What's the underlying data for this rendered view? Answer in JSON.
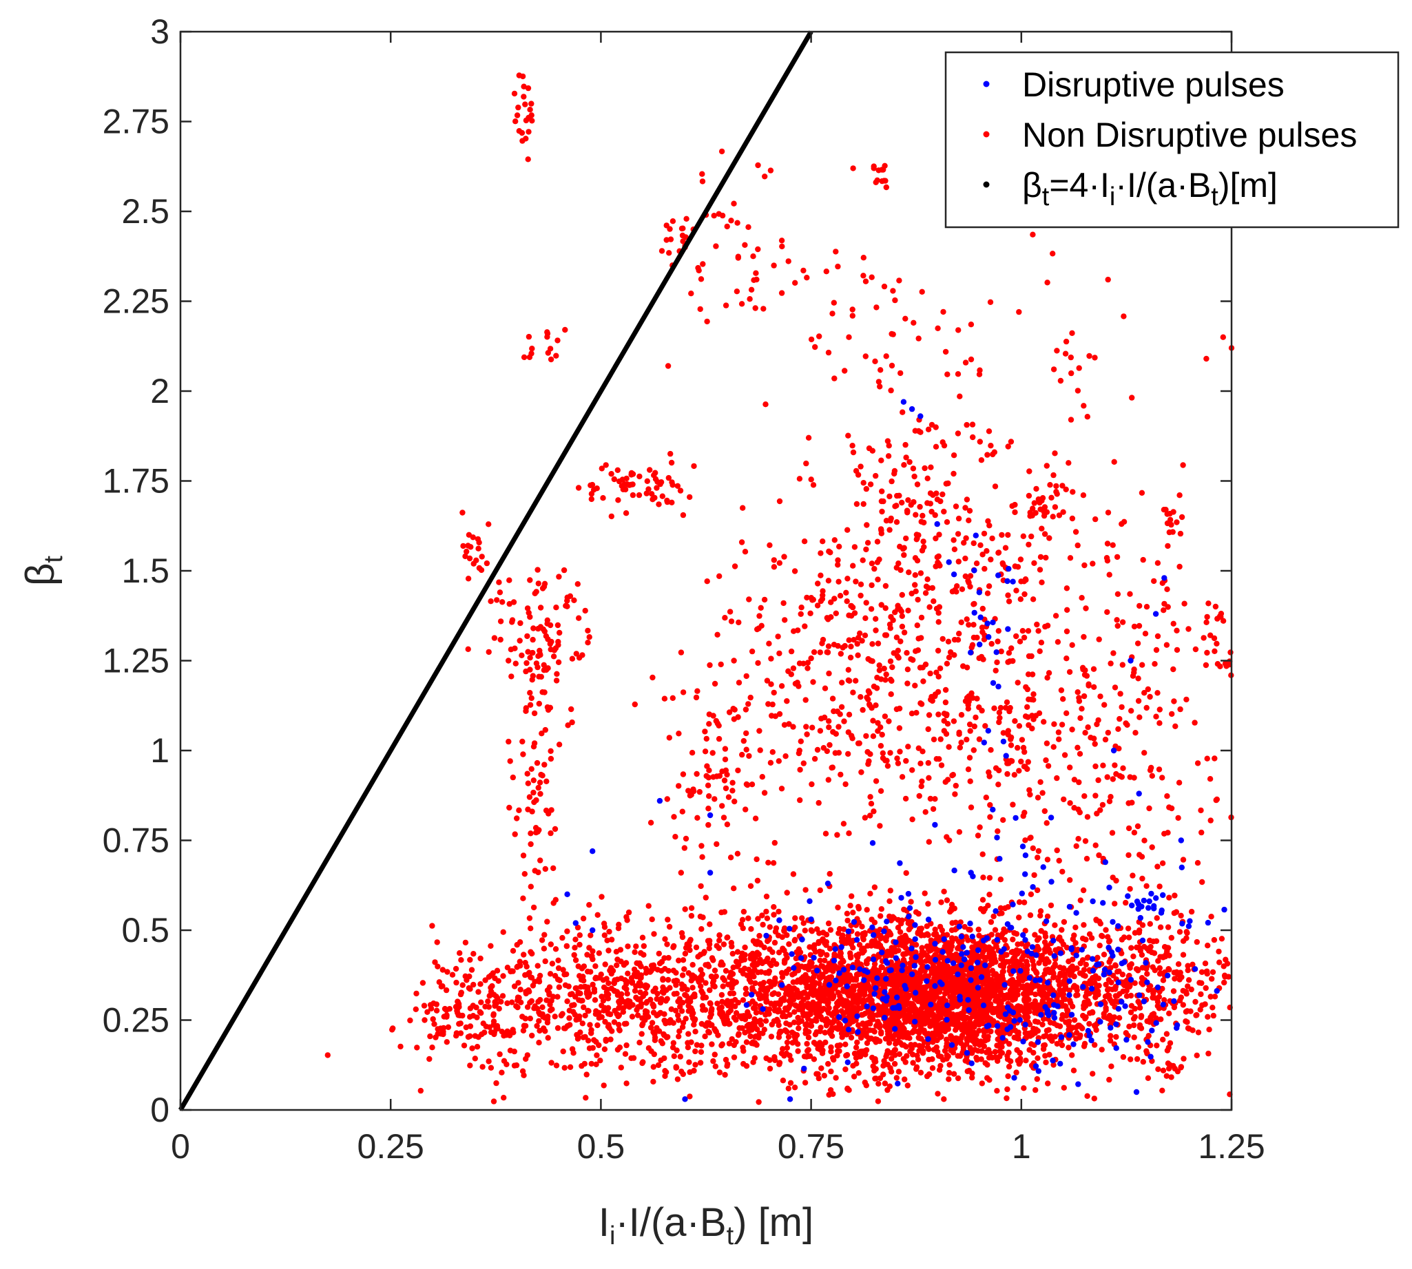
{
  "chart_data": {
    "type": "scatter",
    "title": "",
    "xlabel": {
      "parts": [
        [
          "I",
          ""
        ],
        [
          "i",
          "sub"
        ],
        [
          "·I/(a·B",
          ""
        ],
        [
          "t",
          "sub"
        ],
        [
          ") [m]",
          ""
        ]
      ]
    },
    "ylabel": {
      "parts": [
        [
          "β",
          ""
        ],
        [
          "t",
          "sub"
        ]
      ]
    },
    "xlim": [
      0,
      1.25
    ],
    "ylim": [
      0,
      3
    ],
    "x_ticks": [
      0,
      0.25,
      0.5,
      0.75,
      1,
      1.25
    ],
    "x_tick_labels": [
      "0",
      "0.25",
      "0.5",
      "0.75",
      "1",
      "1.25"
    ],
    "y_ticks": [
      0,
      0.25,
      0.5,
      0.75,
      1,
      1.25,
      1.5,
      1.75,
      2,
      2.25,
      2.5,
      2.75,
      3
    ],
    "y_tick_labels": [
      "0",
      "0.25",
      "0.5",
      "0.75",
      "1",
      "1.25",
      "1.5",
      "1.75",
      "2",
      "2.25",
      "2.5",
      "2.75",
      "3"
    ],
    "grid": false,
    "legend_position": "top-right",
    "series": [
      {
        "name": "Disruptive pulses",
        "color": "#0000ff",
        "kind": "scatter",
        "clusters": [
          {
            "cx": 0.94,
            "cy": 0.34,
            "sx": 0.1,
            "sy": 0.12,
            "n": 160
          },
          {
            "cx": 1.12,
            "cy": 0.42,
            "sx": 0.06,
            "sy": 0.14,
            "n": 70
          },
          {
            "cx": 0.8,
            "cy": 0.42,
            "sx": 0.06,
            "sy": 0.1,
            "n": 40
          },
          {
            "cx": 0.96,
            "cy": 1.3,
            "sx": 0.02,
            "sy": 0.2,
            "n": 22
          },
          {
            "cx": 1.15,
            "cy": 0.58,
            "sx": 0.012,
            "sy": 0.02,
            "n": 15
          },
          {
            "cx": 1.0,
            "cy": 0.72,
            "sx": 0.03,
            "sy": 0.06,
            "n": 10
          }
        ],
        "points": [
          [
            0.87,
            1.95
          ],
          [
            0.88,
            1.93
          ],
          [
            0.86,
            1.97
          ],
          [
            0.6,
            0.03
          ],
          [
            0.725,
            0.03
          ],
          [
            0.57,
            0.86
          ],
          [
            0.63,
            0.82
          ],
          [
            0.49,
            0.72
          ],
          [
            0.46,
            0.6
          ],
          [
            0.47,
            0.52
          ],
          [
            0.49,
            0.5
          ],
          [
            0.63,
            0.66
          ],
          [
            0.77,
            0.63
          ],
          [
            0.99,
            1.47
          ],
          [
            1.17,
            1.48
          ],
          [
            1.16,
            1.38
          ],
          [
            1.13,
            1.25
          ],
          [
            1.11,
            1.0
          ],
          [
            1.14,
            0.88
          ],
          [
            1.19,
            0.75
          ],
          [
            0.9,
            1.63
          ],
          [
            0.92,
            1.49
          ],
          [
            0.95,
            1.44
          ]
        ]
      },
      {
        "name": "Non Disruptive pulses",
        "color": "#ff0000",
        "kind": "scatter",
        "clusters": [
          {
            "cx": 0.9,
            "cy": 0.32,
            "sx": 0.09,
            "sy": 0.1,
            "n": 2400
          },
          {
            "cx": 0.72,
            "cy": 0.33,
            "sx": 0.14,
            "sy": 0.11,
            "n": 1000
          },
          {
            "cx": 0.5,
            "cy": 0.3,
            "sx": 0.09,
            "sy": 0.1,
            "n": 500
          },
          {
            "cx": 1.12,
            "cy": 0.34,
            "sx": 0.08,
            "sy": 0.1,
            "n": 500
          },
          {
            "cx": 0.34,
            "cy": 0.26,
            "sx": 0.03,
            "sy": 0.05,
            "n": 90
          },
          {
            "cx": 0.78,
            "cy": 1.2,
            "sx": 0.07,
            "sy": 0.25,
            "n": 320
          },
          {
            "cx": 0.97,
            "cy": 1.15,
            "sx": 0.07,
            "sy": 0.3,
            "n": 320
          },
          {
            "cx": 1.12,
            "cy": 1.1,
            "sx": 0.06,
            "sy": 0.3,
            "n": 220
          },
          {
            "cx": 0.88,
            "cy": 1.6,
            "sx": 0.06,
            "sy": 0.2,
            "n": 200
          },
          {
            "cx": 0.64,
            "cy": 0.95,
            "sx": 0.04,
            "sy": 0.15,
            "n": 90
          },
          {
            "cx": 0.43,
            "cy": 1.3,
            "sx": 0.03,
            "sy": 0.1,
            "n": 110
          },
          {
            "cx": 0.42,
            "cy": 0.85,
            "sx": 0.015,
            "sy": 0.15,
            "n": 60
          },
          {
            "cx": 0.54,
            "cy": 1.73,
            "sx": 0.03,
            "sy": 0.04,
            "n": 60
          },
          {
            "cx": 0.35,
            "cy": 1.56,
            "sx": 0.01,
            "sy": 0.04,
            "n": 20
          },
          {
            "cx": 0.43,
            "cy": 2.12,
            "sx": 0.015,
            "sy": 0.03,
            "n": 14
          },
          {
            "cx": 0.41,
            "cy": 2.8,
            "sx": 0.006,
            "sy": 0.07,
            "n": 22
          },
          {
            "cx": 0.59,
            "cy": 2.42,
            "sx": 0.01,
            "sy": 0.04,
            "n": 14
          },
          {
            "cx": 0.68,
            "cy": 2.38,
            "sx": 0.04,
            "sy": 0.15,
            "n": 45
          },
          {
            "cx": 0.85,
            "cy": 2.18,
            "sx": 0.07,
            "sy": 0.12,
            "n": 55
          },
          {
            "cx": 0.83,
            "cy": 2.6,
            "sx": 0.01,
            "sy": 0.02,
            "n": 12
          },
          {
            "cx": 1.03,
            "cy": 1.68,
            "sx": 0.02,
            "sy": 0.04,
            "n": 35
          },
          {
            "cx": 1.18,
            "cy": 1.64,
            "sx": 0.006,
            "sy": 0.04,
            "n": 14
          },
          {
            "cx": 1.23,
            "cy": 1.3,
            "sx": 0.015,
            "sy": 0.06,
            "n": 25
          },
          {
            "cx": 1.07,
            "cy": 2.05,
            "sx": 0.02,
            "sy": 0.15,
            "n": 20
          },
          {
            "cx": 1.18,
            "cy": 0.12,
            "sx": 0.008,
            "sy": 0.01,
            "n": 10
          }
        ],
        "points": [
          [
            0.61,
            2.45
          ],
          [
            0.625,
            2.49
          ],
          [
            0.6,
            2.4
          ],
          [
            0.585,
            2.35
          ],
          [
            0.58,
            2.07
          ],
          [
            0.8,
            2.62
          ],
          [
            1.24,
            2.15
          ],
          [
            1.22,
            2.09
          ],
          [
            1.25,
            2.12
          ],
          [
            0.52,
            1.78
          ],
          [
            0.38,
            1.44
          ],
          [
            0.29,
            0.29
          ],
          [
            0.28,
            0.28
          ],
          [
            1.09,
            0.24
          ]
        ]
      },
      {
        "name": "βt=4·Ii·I/(a·Bt)[m]",
        "color": "#000000",
        "kind": "line",
        "x": [
          0,
          0.75
        ],
        "y": [
          0,
          3
        ]
      }
    ],
    "legend": {
      "entries": [
        {
          "parts": [
            [
              "Disruptive pulses",
              ""
            ]
          ],
          "color": "#0000ff"
        },
        {
          "parts": [
            [
              "Non Disruptive pulses",
              ""
            ]
          ],
          "color": "#ff0000"
        },
        {
          "parts": [
            [
              "β",
              ""
            ],
            [
              "t",
              "sub"
            ],
            [
              "=4·I",
              ""
            ],
            [
              "i",
              "sub"
            ],
            [
              "·I/(a·B",
              ""
            ],
            [
              "t",
              "sub"
            ],
            [
              ")[m]",
              ""
            ]
          ],
          "color": "#000000"
        }
      ]
    }
  }
}
